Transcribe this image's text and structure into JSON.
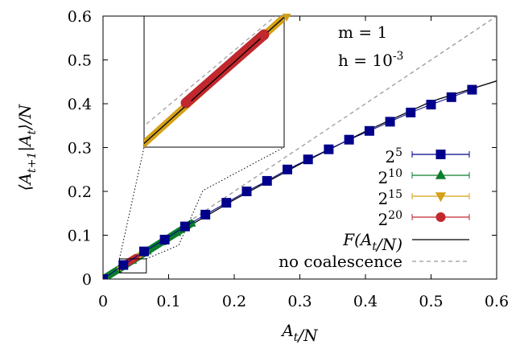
{
  "chart_data": {
    "type": "line",
    "xlabel": "A_t/N",
    "ylabel": "⟨A_{t+1}|A_t⟩/N",
    "xlim": [
      0,
      0.6
    ],
    "ylim": [
      0,
      0.6
    ],
    "x_ticks": [
      "0",
      "0.1",
      "0.2",
      "0.3",
      "0.4",
      "0.5",
      "0.6"
    ],
    "y_ticks": [
      "0",
      "0.1",
      "0.2",
      "0.3",
      "0.4",
      "0.5",
      "0.6"
    ],
    "annotations": [
      "m = 1",
      "h = 10^{-3}"
    ],
    "legend_position": "right",
    "grid": false,
    "series": [
      {
        "name": "2^5",
        "marker": "square",
        "color": "#00008b",
        "x": [
          0,
          0.031,
          0.0625,
          0.094,
          0.125,
          0.156,
          0.188,
          0.219,
          0.25,
          0.281,
          0.3125,
          0.344,
          0.375,
          0.406,
          0.4375,
          0.469,
          0.5,
          0.531,
          0.5625
        ],
        "y": [
          0,
          0.032,
          0.063,
          0.09,
          0.12,
          0.147,
          0.174,
          0.2,
          0.224,
          0.25,
          0.273,
          0.296,
          0.318,
          0.338,
          0.359,
          0.38,
          0.398,
          0.415,
          0.432
        ]
      },
      {
        "name": "2^10",
        "marker": "triangle",
        "color": "#0a7d2c",
        "x": [
          0,
          0.135
        ],
        "y": [
          0,
          0.127
        ]
      },
      {
        "name": "2^15",
        "marker": "triangle-down",
        "color": "#d4a017",
        "x": [
          0.025,
          0.06
        ],
        "y": [
          0.025,
          0.058
        ]
      },
      {
        "name": "2^20",
        "marker": "circle",
        "color": "#c0282d",
        "x": [
          0.038,
          0.05
        ],
        "y": [
          0.038,
          0.049
        ]
      },
      {
        "name": "F(A_t/N)",
        "style": "solid",
        "color": "#000000",
        "x": [
          0,
          0.1,
          0.2,
          0.3,
          0.4,
          0.5,
          0.6
        ],
        "y": [
          0,
          0.094,
          0.181,
          0.262,
          0.337,
          0.405,
          0.452
        ]
      },
      {
        "name": "no coalescence",
        "style": "dashed",
        "color": "#999999",
        "x": [
          0,
          0.6
        ],
        "y": [
          0,
          0.6
        ]
      }
    ]
  }
}
